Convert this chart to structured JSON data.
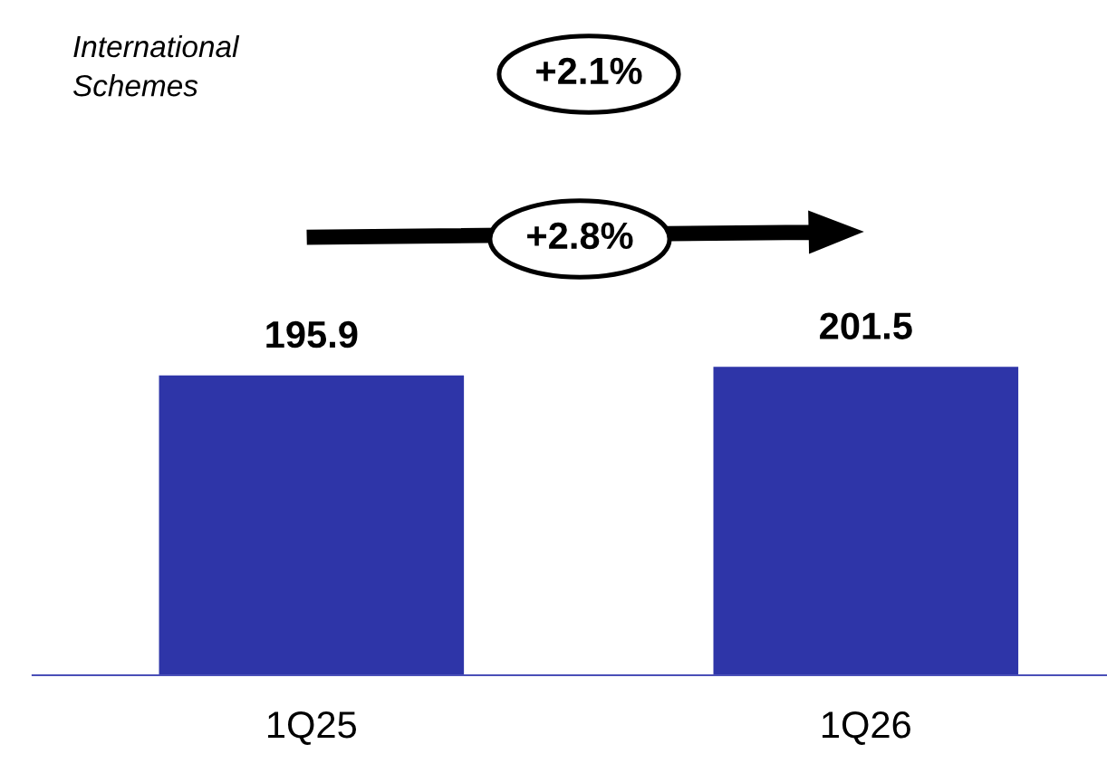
{
  "chart_data": {
    "type": "bar",
    "title": "International\nSchemes",
    "categories": [
      "1Q25",
      "1Q26"
    ],
    "values": [
      195.9,
      201.5
    ],
    "color": "#2e35a8",
    "data_labels": true,
    "grid": false,
    "legend": false,
    "annotations": [
      "+2.1%",
      "+2.8%"
    ]
  }
}
